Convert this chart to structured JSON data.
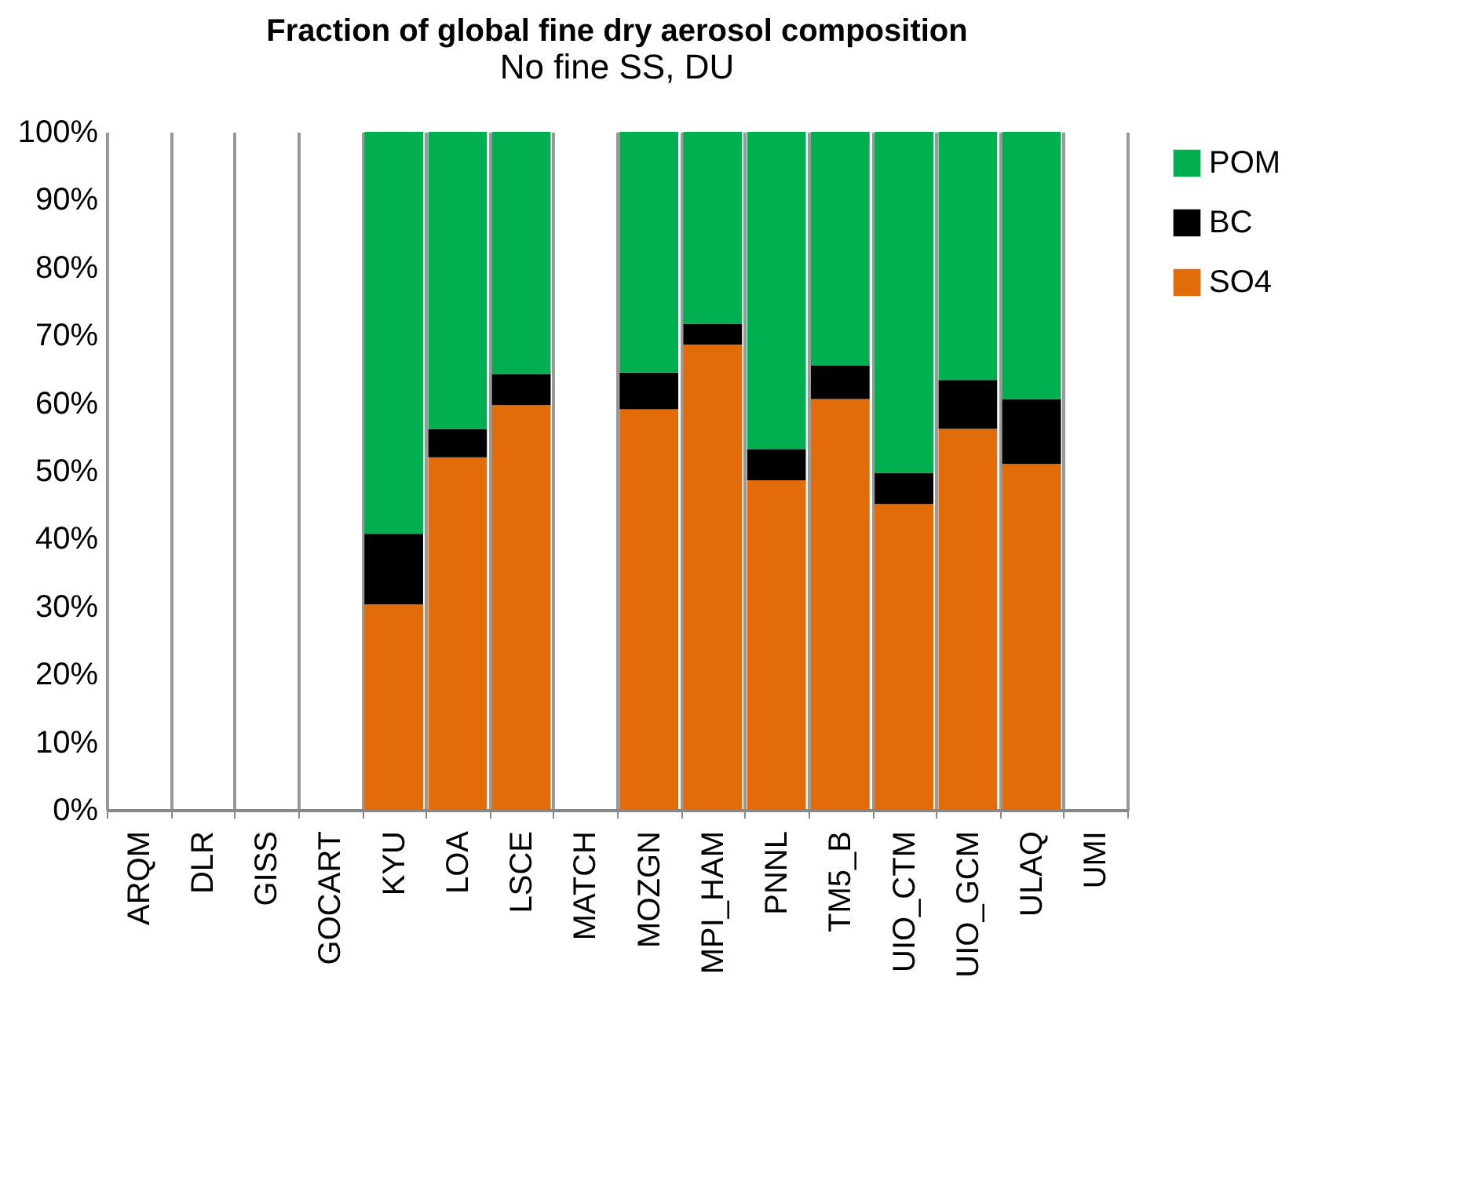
{
  "chart_data": {
    "type": "bar",
    "stacked": true,
    "title": "Fraction of global fine dry aerosol composition",
    "annotations": [
      "No fine SS, DU"
    ],
    "categories": [
      "ARQM",
      "DLR",
      "GISS",
      "GOCART",
      "KYU",
      "LOA",
      "LSCE",
      "MATCH",
      "MOZGN",
      "MPI_HAM",
      "PNNL",
      "TM5_B",
      "UIO_CTM",
      "UIO_GCM",
      "ULAQ",
      "UMI"
    ],
    "series": [
      {
        "name": "SO4",
        "color": "#e36c0a",
        "values": [
          null,
          null,
          null,
          null,
          30.3,
          52.0,
          59.7,
          null,
          59.1,
          68.6,
          48.6,
          60.6,
          45.1,
          56.2,
          51.0,
          null
        ]
      },
      {
        "name": "BC",
        "color": "#000000",
        "values": [
          null,
          null,
          null,
          null,
          10.4,
          4.2,
          4.6,
          null,
          5.4,
          3.1,
          4.6,
          4.9,
          4.6,
          7.2,
          9.6,
          null
        ]
      },
      {
        "name": "POM",
        "color": "#00b050",
        "values": [
          null,
          null,
          null,
          null,
          59.3,
          43.8,
          35.7,
          null,
          35.5,
          28.3,
          46.8,
          34.5,
          50.3,
          36.6,
          39.4,
          null
        ]
      }
    ],
    "ylim": [
      0,
      100
    ],
    "yticks": [
      {
        "value": 0,
        "label": "0%"
      },
      {
        "value": 10,
        "label": "10%"
      },
      {
        "value": 20,
        "label": "20%"
      },
      {
        "value": 30,
        "label": "30%"
      },
      {
        "value": 40,
        "label": "40%"
      },
      {
        "value": 50,
        "label": "50%"
      },
      {
        "value": 60,
        "label": "60%"
      },
      {
        "value": 70,
        "label": "70%"
      },
      {
        "value": 80,
        "label": "80%"
      },
      {
        "value": 90,
        "label": "90%"
      },
      {
        "value": 100,
        "label": "100%"
      }
    ],
    "grid": "x",
    "legend": "right"
  }
}
